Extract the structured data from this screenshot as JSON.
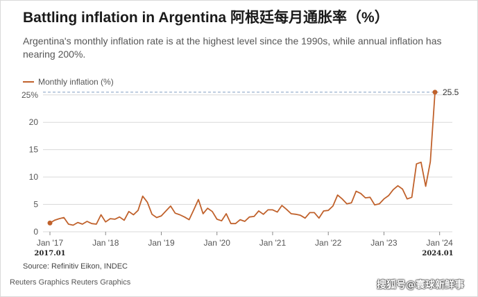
{
  "title": "Battling inflation in Argentina 阿根廷每月通胀率（%）",
  "subtitle": "Argentina's monthly inflation rate is at the highest level since the 1990s, while annual inflation has nearing 200%.",
  "source": "Source: Refinitiv Eikon, INDEC",
  "credit": "Reuters Graphics Reuters Graphics",
  "watermark": "搜狐号@寰球新鲜事",
  "colors": {
    "line": "#c0612b",
    "grid": "#d9d9d9",
    "refline": "#8fa8c8"
  },
  "chart_data": {
    "type": "line",
    "series": [
      {
        "name": "Monthly inflation (%)",
        "start": "2017-01",
        "values": [
          1.6,
          2.1,
          2.4,
          2.6,
          1.4,
          1.2,
          1.7,
          1.4,
          1.9,
          1.5,
          1.4,
          3.1,
          1.8,
          2.4,
          2.3,
          2.7,
          2.1,
          3.7,
          3.1,
          3.9,
          6.5,
          5.4,
          3.2,
          2.6,
          2.9,
          3.8,
          4.7,
          3.4,
          3.1,
          2.7,
          2.2,
          4.0,
          5.9,
          3.3,
          4.3,
          3.7,
          2.3,
          2.0,
          3.3,
          1.5,
          1.5,
          2.2,
          1.9,
          2.7,
          2.8,
          3.8,
          3.2,
          4.0,
          4.0,
          3.6,
          4.8,
          4.1,
          3.3,
          3.2,
          3.0,
          2.5,
          3.5,
          3.5,
          2.5,
          3.8,
          3.9,
          4.7,
          6.7,
          6.0,
          5.1,
          5.3,
          7.4,
          7.0,
          6.2,
          6.3,
          4.9,
          5.1,
          6.0,
          6.6,
          7.7,
          8.4,
          7.8,
          6.0,
          6.3,
          12.4,
          12.7,
          8.3,
          12.8,
          25.5
        ]
      }
    ],
    "x_ticks": [
      "Jan '17",
      "Jan '18",
      "Jan '19",
      "Jan '20",
      "Jan '21",
      "Jan '22",
      "Jan '23",
      "Jan '24"
    ],
    "x_start_label": "2017.01",
    "x_end_label": "2024.01",
    "y_ticks": [
      "0",
      "5",
      "10",
      "15",
      "20",
      "25%"
    ],
    "ylim": [
      0,
      27
    ],
    "reference_line": 25.5,
    "end_label": "25.5",
    "grid": true,
    "legend_position": "top-left"
  }
}
